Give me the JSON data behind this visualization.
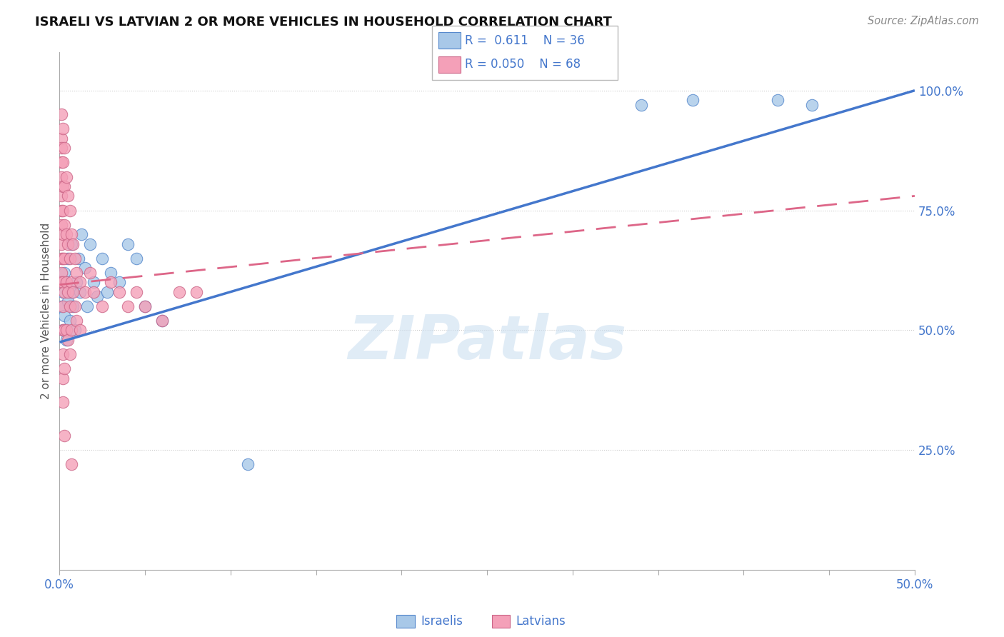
{
  "title": "ISRAELI VS LATVIAN 2 OR MORE VEHICLES IN HOUSEHOLD CORRELATION CHART",
  "source": "Source: ZipAtlas.com",
  "ylabel": "2 or more Vehicles in Household",
  "ytick_labels": [
    "100.0%",
    "75.0%",
    "50.0%",
    "25.0%"
  ],
  "ytick_values": [
    1.0,
    0.75,
    0.5,
    0.25
  ],
  "xlim": [
    0.0,
    0.5
  ],
  "ylim": [
    0.0,
    1.08
  ],
  "israeli_color": "#a8c8e8",
  "latvian_color": "#f4a0b8",
  "israeli_edge_color": "#5588cc",
  "latvian_edge_color": "#cc6688",
  "israeli_line_color": "#4477cc",
  "latvian_line_color": "#dd6688",
  "legend_R_israeli": "R =  0.611",
  "legend_N_israeli": "N = 36",
  "legend_R_latvian": "R = 0.050",
  "legend_N_latvian": "N = 68",
  "watermark": "ZIPatlas",
  "israeli_points": [
    [
      0.001,
      0.55
    ],
    [
      0.002,
      0.5
    ],
    [
      0.002,
      0.58
    ],
    [
      0.003,
      0.53
    ],
    [
      0.003,
      0.62
    ],
    [
      0.004,
      0.48
    ],
    [
      0.004,
      0.6
    ],
    [
      0.005,
      0.56
    ],
    [
      0.005,
      0.65
    ],
    [
      0.006,
      0.52
    ],
    [
      0.007,
      0.58
    ],
    [
      0.007,
      0.68
    ],
    [
      0.008,
      0.55
    ],
    [
      0.009,
      0.5
    ],
    [
      0.01,
      0.6
    ],
    [
      0.011,
      0.65
    ],
    [
      0.012,
      0.58
    ],
    [
      0.013,
      0.7
    ],
    [
      0.015,
      0.63
    ],
    [
      0.016,
      0.55
    ],
    [
      0.018,
      0.68
    ],
    [
      0.02,
      0.6
    ],
    [
      0.022,
      0.57
    ],
    [
      0.025,
      0.65
    ],
    [
      0.028,
      0.58
    ],
    [
      0.03,
      0.62
    ],
    [
      0.035,
      0.6
    ],
    [
      0.04,
      0.68
    ],
    [
      0.045,
      0.65
    ],
    [
      0.05,
      0.55
    ],
    [
      0.06,
      0.52
    ],
    [
      0.11,
      0.22
    ],
    [
      0.34,
      0.97
    ],
    [
      0.37,
      0.98
    ],
    [
      0.42,
      0.98
    ],
    [
      0.44,
      0.97
    ]
  ],
  "latvian_points": [
    [
      0.001,
      0.95
    ],
    [
      0.001,
      0.9
    ],
    [
      0.001,
      0.88
    ],
    [
      0.001,
      0.85
    ],
    [
      0.001,
      0.82
    ],
    [
      0.001,
      0.78
    ],
    [
      0.001,
      0.75
    ],
    [
      0.001,
      0.72
    ],
    [
      0.001,
      0.68
    ],
    [
      0.001,
      0.65
    ],
    [
      0.001,
      0.62
    ],
    [
      0.001,
      0.6
    ],
    [
      0.002,
      0.92
    ],
    [
      0.002,
      0.85
    ],
    [
      0.002,
      0.8
    ],
    [
      0.002,
      0.75
    ],
    [
      0.002,
      0.7
    ],
    [
      0.002,
      0.65
    ],
    [
      0.002,
      0.6
    ],
    [
      0.002,
      0.55
    ],
    [
      0.002,
      0.5
    ],
    [
      0.002,
      0.45
    ],
    [
      0.002,
      0.4
    ],
    [
      0.002,
      0.35
    ],
    [
      0.003,
      0.88
    ],
    [
      0.003,
      0.8
    ],
    [
      0.003,
      0.72
    ],
    [
      0.003,
      0.65
    ],
    [
      0.003,
      0.58
    ],
    [
      0.003,
      0.5
    ],
    [
      0.003,
      0.42
    ],
    [
      0.003,
      0.28
    ],
    [
      0.004,
      0.82
    ],
    [
      0.004,
      0.7
    ],
    [
      0.004,
      0.6
    ],
    [
      0.004,
      0.5
    ],
    [
      0.005,
      0.78
    ],
    [
      0.005,
      0.68
    ],
    [
      0.005,
      0.58
    ],
    [
      0.005,
      0.48
    ],
    [
      0.006,
      0.75
    ],
    [
      0.006,
      0.65
    ],
    [
      0.006,
      0.55
    ],
    [
      0.006,
      0.45
    ],
    [
      0.007,
      0.7
    ],
    [
      0.007,
      0.6
    ],
    [
      0.007,
      0.5
    ],
    [
      0.007,
      0.22
    ],
    [
      0.008,
      0.68
    ],
    [
      0.008,
      0.58
    ],
    [
      0.009,
      0.65
    ],
    [
      0.009,
      0.55
    ],
    [
      0.01,
      0.62
    ],
    [
      0.01,
      0.52
    ],
    [
      0.012,
      0.6
    ],
    [
      0.012,
      0.5
    ],
    [
      0.015,
      0.58
    ],
    [
      0.018,
      0.62
    ],
    [
      0.02,
      0.58
    ],
    [
      0.025,
      0.55
    ],
    [
      0.03,
      0.6
    ],
    [
      0.035,
      0.58
    ],
    [
      0.04,
      0.55
    ],
    [
      0.045,
      0.58
    ],
    [
      0.05,
      0.55
    ],
    [
      0.06,
      0.52
    ],
    [
      0.07,
      0.58
    ],
    [
      0.08,
      0.58
    ]
  ],
  "isr_line_x": [
    0.0,
    0.5
  ],
  "isr_line_y": [
    0.475,
    1.0
  ],
  "lat_line_x": [
    0.0,
    0.5
  ],
  "lat_line_y": [
    0.595,
    0.78
  ]
}
